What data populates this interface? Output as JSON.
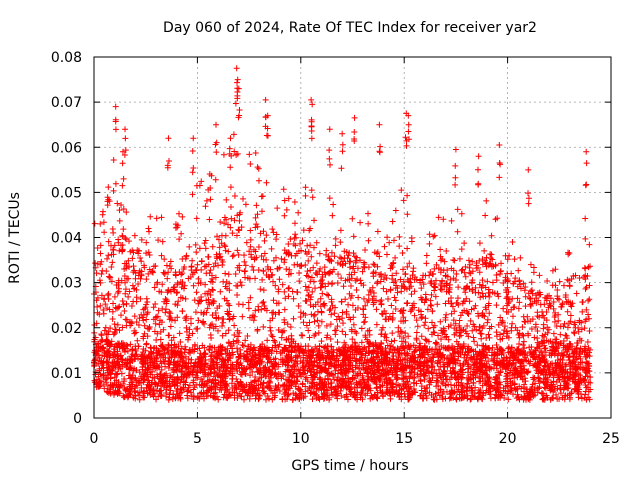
{
  "chart_data": {
    "type": "scatter",
    "title": "Day 060 of 2024, Rate Of TEC Index for receiver yar2",
    "xlabel": "GPS time / hours",
    "ylabel": "ROTI / TECUs",
    "xlim": [
      0,
      25
    ],
    "ylim": [
      0,
      0.08
    ],
    "x_ticks": [
      0,
      5,
      10,
      15,
      20,
      25
    ],
    "y_ticks": [
      0,
      0.01,
      0.02,
      0.03,
      0.04,
      0.05,
      0.06,
      0.07,
      0.08
    ],
    "x_tick_labels": [
      "0",
      "5",
      "10",
      "15",
      "20",
      "25"
    ],
    "y_tick_labels": [
      "0",
      "0.01",
      "0.02",
      "0.03",
      "0.04",
      "0.05",
      "0.06",
      "0.07",
      "0.08"
    ],
    "grid": true,
    "marker": "plus",
    "marker_color": "#ff0000",
    "series": [
      {
        "name": "ROTI",
        "sampling": "one point per satellite per minute, 0-24 h; dense cloud mostly 0.005-0.045 TECU/s with sporadic spikes",
        "envelope": {
          "x": [
            0,
            1,
            2,
            3,
            4,
            5,
            6,
            7,
            8,
            9,
            10,
            11,
            12,
            13,
            14,
            15,
            16,
            17,
            18,
            19,
            20,
            21,
            22,
            23,
            24
          ],
          "upper": [
            0.043,
            0.058,
            0.05,
            0.047,
            0.045,
            0.052,
            0.058,
            0.065,
            0.058,
            0.052,
            0.055,
            0.048,
            0.05,
            0.047,
            0.042,
            0.052,
            0.04,
            0.048,
            0.045,
            0.05,
            0.042,
            0.035,
            0.033,
            0.04,
            0.048
          ],
          "lower": [
            0.006,
            0.005,
            0.004,
            0.004,
            0.004,
            0.004,
            0.004,
            0.004,
            0.004,
            0.004,
            0.004,
            0.004,
            0.004,
            0.004,
            0.004,
            0.004,
            0.004,
            0.004,
            0.004,
            0.004,
            0.004,
            0.004,
            0.004,
            0.004,
            0.004
          ]
        },
        "spikes": [
          [
            1.05,
            0.069
          ],
          [
            1.5,
            0.064
          ],
          [
            1.4,
            0.059
          ],
          [
            3.6,
            0.062
          ],
          [
            4.8,
            0.062
          ],
          [
            5.9,
            0.065
          ],
          [
            6.6,
            0.062
          ],
          [
            6.9,
            0.0775
          ],
          [
            6.95,
            0.075
          ],
          [
            7.0,
            0.073
          ],
          [
            8.3,
            0.0705
          ],
          [
            8.4,
            0.067
          ],
          [
            10.5,
            0.0705
          ],
          [
            10.55,
            0.0695
          ],
          [
            11.4,
            0.064
          ],
          [
            12.0,
            0.063
          ],
          [
            12.6,
            0.0665
          ],
          [
            13.8,
            0.065
          ],
          [
            15.1,
            0.0675
          ],
          [
            15.2,
            0.067
          ],
          [
            17.5,
            0.0595
          ],
          [
            18.6,
            0.058
          ],
          [
            19.6,
            0.0605
          ],
          [
            21.0,
            0.055
          ],
          [
            23.8,
            0.059
          ]
        ]
      }
    ]
  }
}
